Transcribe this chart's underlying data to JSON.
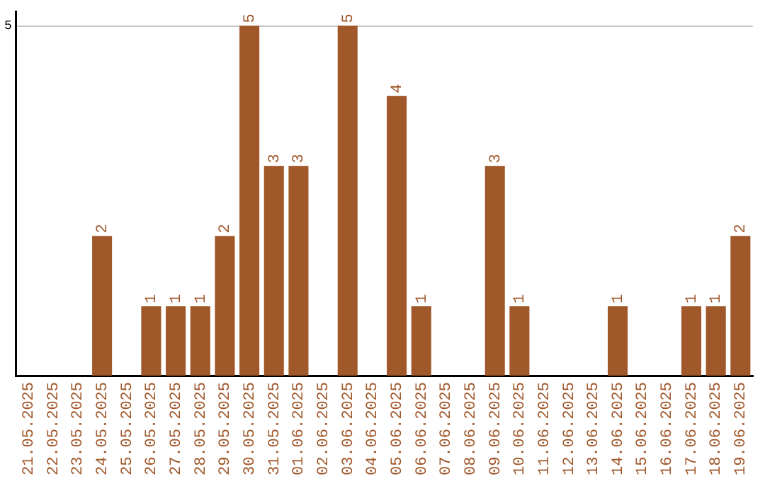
{
  "chart_data": {
    "type": "bar",
    "categories": [
      "21.05.2025",
      "22.05.2025",
      "23.05.2025",
      "24.05.2025",
      "25.05.2025",
      "26.05.2025",
      "27.05.2025",
      "28.05.2025",
      "29.05.2025",
      "30.05.2025",
      "31.05.2025",
      "01.06.2025",
      "02.06.2025",
      "03.06.2025",
      "04.06.2025",
      "05.06.2025",
      "06.06.2025",
      "07.06.2025",
      "08.06.2025",
      "09.06.2025",
      "10.06.2025",
      "11.06.2025",
      "12.06.2025",
      "13.06.2025",
      "14.06.2025",
      "15.06.2025",
      "16.06.2025",
      "17.06.2025",
      "18.06.2025",
      "19.06.2025"
    ],
    "values": [
      0,
      0,
      0,
      2,
      0,
      1,
      1,
      1,
      2,
      5,
      3,
      3,
      0,
      5,
      0,
      4,
      1,
      0,
      0,
      3,
      1,
      0,
      0,
      0,
      1,
      0,
      0,
      1,
      1,
      2
    ],
    "value_labels": [
      null,
      null,
      null,
      "2",
      null,
      "1",
      "1",
      "1",
      "2",
      "5",
      "3",
      "3",
      null,
      "5",
      null,
      "4",
      "1",
      null,
      null,
      "3",
      "1",
      null,
      null,
      null,
      "1",
      null,
      null,
      "1",
      "1",
      "2"
    ],
    "color": "#a0572a",
    "ylim": [
      0,
      5.2
    ],
    "yticks": [
      0,
      5
    ],
    "grid": "y",
    "legend": false
  }
}
